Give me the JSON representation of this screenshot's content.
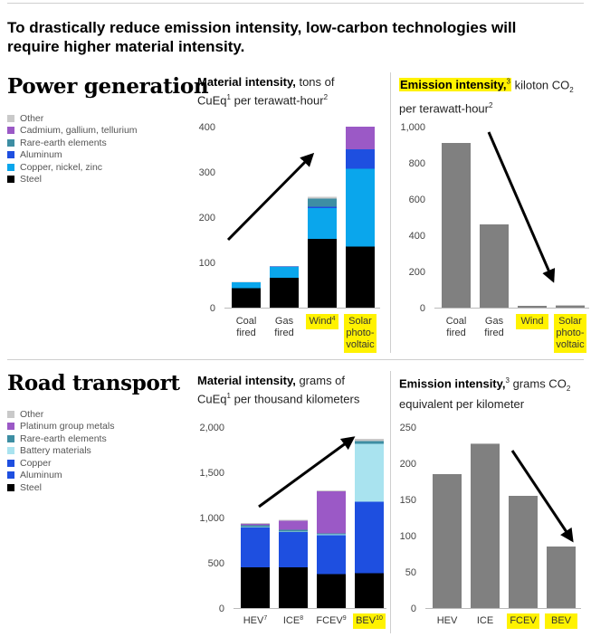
{
  "headline": "To drastically reduce emission intensity, low-carbon technologies will require higher material intensity.",
  "colors": {
    "Other": "#c9c9c9",
    "Cadmium, gallium, tellurium": "#9b59c6",
    "Platinum group metals": "#9b59c6",
    "Rare-earth elements": "#3d8ea3",
    "Aluminum": "#1e4fe0",
    "Copper": "#1e4fe0",
    "Copper, nickel, zinc": "#0aa6ec",
    "Battery materials": "#a9e3ef",
    "Steel": "#000000",
    "emission_bar": "#808080",
    "highlight": "#fff200"
  },
  "sections": {
    "power": {
      "title": "Power generation",
      "legend": [
        "Other",
        "Cadmium, gallium, tellurium",
        "Rare-earth elements",
        "Aluminum",
        "Copper, nickel, zinc",
        "Steel"
      ]
    },
    "road": {
      "title": "Road transport",
      "legend": [
        "Other",
        "Platinum group metals",
        "Rare-earth elements",
        "Battery materials",
        "Copper",
        "Aluminum",
        "Steel"
      ]
    }
  },
  "panel_titles": {
    "power_material": {
      "bold": "Material intensity,",
      "rest1": " tons of",
      "line2a": "CuEq",
      "sup1": "1",
      "line2b": " per terawatt-hour",
      "sup2": "2"
    },
    "power_emission": {
      "bold": "Emission intensity,",
      "sup3": "3",
      "rest1": " kiloton CO",
      "sub": "2",
      "line2a": "per terawatt-hour",
      "sup2": "2"
    },
    "road_material": {
      "bold": "Material intensity,",
      "rest1": " grams of",
      "line2a": "CuEq",
      "sup1": "1",
      "line2b": " per thousand kilometers"
    },
    "road_emission": {
      "bold": "Emission intensity,",
      "sup3": "3",
      "rest1": " grams CO",
      "sub": "2",
      "line2a": "equivalent per kilometer"
    }
  },
  "chart_data": [
    {
      "id": "power_material",
      "type": "bar",
      "stacked": true,
      "title": "Material intensity, tons of CuEq per terawatt-hour",
      "categories": [
        [
          "Coal",
          "fired"
        ],
        [
          "Gas",
          "fired"
        ],
        [
          "Wind"
        ],
        [
          "Solar",
          "photo-",
          "voltaic"
        ]
      ],
      "category_sup": [
        "",
        "",
        "4",
        ""
      ],
      "highlighted": [
        false,
        false,
        true,
        true
      ],
      "ylim": [
        0,
        400
      ],
      "yticks": [
        0,
        100,
        200,
        300,
        400
      ],
      "series": [
        {
          "name": "Steel",
          "values": [
            43,
            66,
            152,
            135
          ]
        },
        {
          "name": "Copper, nickel, zinc",
          "values": [
            13,
            24,
            68,
            172
          ]
        },
        {
          "name": "Aluminum",
          "values": [
            0,
            1,
            3,
            43
          ]
        },
        {
          "name": "Rare-earth elements",
          "values": [
            0,
            0,
            18,
            0
          ]
        },
        {
          "name": "Cadmium, gallium, tellurium",
          "values": [
            0,
            0,
            0,
            50
          ]
        },
        {
          "name": "Other",
          "values": [
            1,
            1,
            4,
            0
          ]
        }
      ],
      "arrow": "up"
    },
    {
      "id": "power_emission",
      "type": "bar",
      "title": "Emission intensity, kiloton CO2 per terawatt-hour",
      "categories": [
        [
          "Coal",
          "fired"
        ],
        [
          "Gas",
          "fired"
        ],
        [
          "Wind"
        ],
        [
          "Solar",
          "photo-",
          "voltaic"
        ]
      ],
      "category_sup": [
        "",
        "",
        "",
        ""
      ],
      "highlighted": [
        false,
        false,
        true,
        true
      ],
      "ylim": [
        0,
        1000
      ],
      "yticks": [
        0,
        200,
        400,
        600,
        800,
        1000
      ],
      "yticklabels": [
        "0",
        "200",
        "400",
        "600",
        "800",
        "1,000"
      ],
      "values": [
        910,
        460,
        10,
        12
      ],
      "arrow": "down"
    },
    {
      "id": "road_material",
      "type": "bar",
      "stacked": true,
      "title": "Material intensity, grams of CuEq per thousand kilometers",
      "categories": [
        [
          "HEV"
        ],
        [
          "ICE"
        ],
        [
          "FCEV"
        ],
        [
          "BEV"
        ]
      ],
      "category_sup": [
        "7",
        "8",
        "9",
        "10"
      ],
      "highlighted": [
        false,
        false,
        false,
        true
      ],
      "ylim": [
        0,
        2000
      ],
      "yticks": [
        0,
        500,
        1000,
        1500,
        2000
      ],
      "yticklabels": [
        "0",
        "500",
        "1,000",
        "1,500",
        "2,000"
      ],
      "series": [
        {
          "name": "Steel",
          "values": [
            450,
            450,
            375,
            385
          ]
        },
        {
          "name": "Aluminum",
          "values": [
            320,
            290,
            310,
            570
          ]
        },
        {
          "name": "Copper",
          "values": [
            120,
            100,
            120,
            220
          ]
        },
        {
          "name": "Battery materials",
          "values": [
            5,
            5,
            10,
            640
          ]
        },
        {
          "name": "Rare-earth elements",
          "values": [
            20,
            20,
            10,
            30
          ]
        },
        {
          "name": "Platinum group metals",
          "values": [
            15,
            100,
            465,
            0
          ]
        },
        {
          "name": "Other",
          "values": [
            10,
            10,
            10,
            25
          ]
        }
      ],
      "arrow": "up"
    },
    {
      "id": "road_emission",
      "type": "bar",
      "title": "Emission intensity, grams CO2 equivalent per kilometer",
      "categories": [
        [
          "HEV"
        ],
        [
          "ICE"
        ],
        [
          "FCEV"
        ],
        [
          "BEV"
        ]
      ],
      "category_sup": [
        "",
        "",
        "",
        ""
      ],
      "highlighted": [
        false,
        false,
        true,
        true
      ],
      "ylim": [
        0,
        250
      ],
      "yticks": [
        0,
        50,
        100,
        150,
        200,
        250
      ],
      "values": [
        185,
        227,
        155,
        85
      ],
      "arrow": "down"
    }
  ]
}
